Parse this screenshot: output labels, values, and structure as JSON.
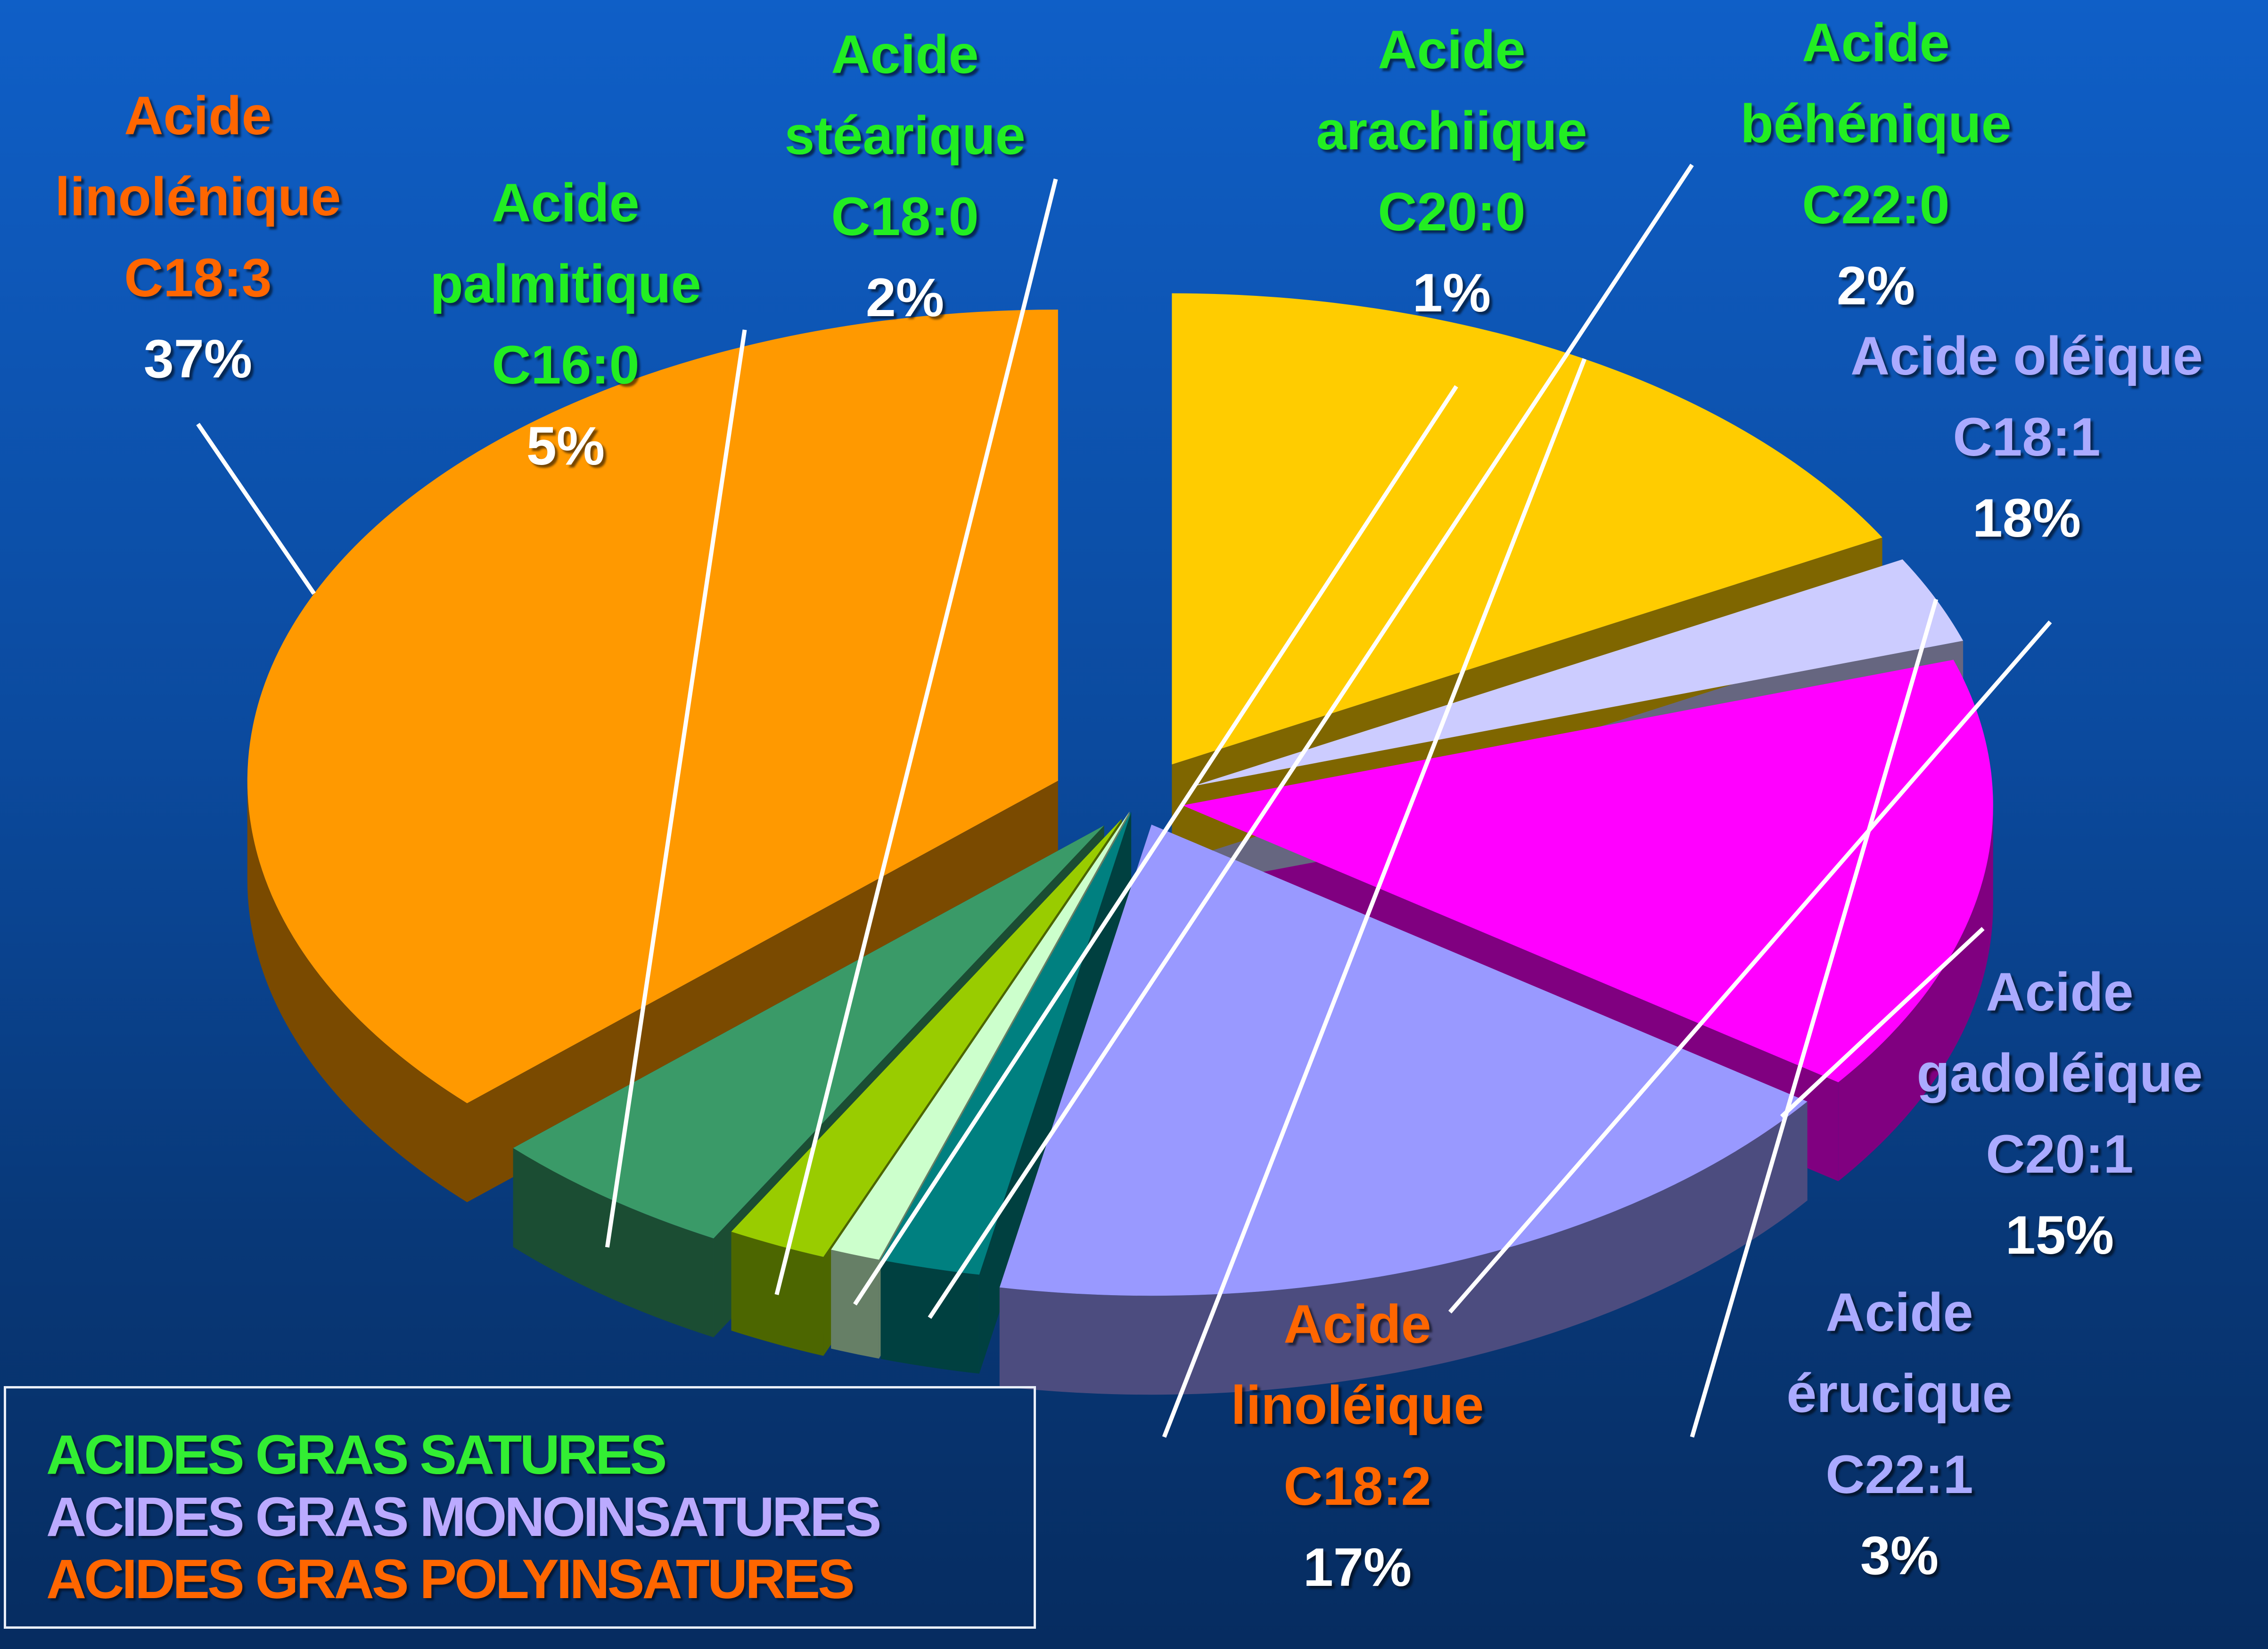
{
  "chart_data": {
    "type": "pie",
    "title": "",
    "slices": [
      {
        "name": "Acide linolénique",
        "code": "C18:3",
        "value": 37,
        "label": "37%",
        "group": "poly",
        "color": "#ff9900",
        "side": "#7a4a00"
      },
      {
        "name": "Acide palmitique",
        "code": "C16:0",
        "value": 5,
        "label": "5%",
        "group": "sat",
        "color": "#3a9a68",
        "side": "#1b4d33"
      },
      {
        "name": "Acide stéarique",
        "code": "C18:0",
        "value": 2,
        "label": "2%",
        "group": "sat",
        "color": "#99cc00",
        "side": "#4c6600"
      },
      {
        "name": "Acide arachiique",
        "code": "C20:0",
        "value": 1,
        "label": "1%",
        "group": "sat",
        "color": "#ccffcc",
        "side": "#667f66"
      },
      {
        "name": "Acide béhénique",
        "code": "C22:0",
        "value": 2,
        "label": "2%",
        "group": "sat",
        "color": "#008080",
        "side": "#004040"
      },
      {
        "name": "Acide oléique",
        "code": "C18:1",
        "value": 18,
        "label": "18%",
        "group": "mono",
        "color": "#9999ff",
        "side": "#4c4c7f"
      },
      {
        "name": "Acide gadoléique",
        "code": "C20:1",
        "value": 15,
        "label": "15%",
        "group": "mono",
        "color": "#ff00ff",
        "side": "#800080"
      },
      {
        "name": "Acide érucique",
        "code": "C22:1",
        "value": 3,
        "label": "3%",
        "group": "mono",
        "color": "#ccccff",
        "side": "#666680"
      },
      {
        "name": "Acide linoléique",
        "code": "C18:2",
        "value": 17,
        "label": "17%",
        "group": "poly",
        "color": "#ffcc00",
        "side": "#7f6600"
      }
    ],
    "legend": [
      {
        "text": "ACIDES GRAS SATURES",
        "group": "sat"
      },
      {
        "text": "ACIDES GRAS MONOINSATURES",
        "group": "mono"
      },
      {
        "text": "ACIDES GRAS POLYINSATURES",
        "group": "poly"
      }
    ],
    "group_colors": {
      "sat": "#33ee33",
      "mono": "#aaaaff",
      "poly": "#ff6600"
    },
    "legend_placement": "bottom-left",
    "style": "3d-exploded"
  },
  "labels": {
    "linolenique": {
      "l1": "Acide",
      "l2": "linolénique",
      "code": "C18:3",
      "pct": "37%"
    },
    "palmitique": {
      "l1": "Acide",
      "l2": "palmitique",
      "code": "C16:0",
      "pct": "5%"
    },
    "stearique": {
      "l1": "Acide",
      "l2": "stéarique",
      "code": "C18:0",
      "pct": "2%"
    },
    "arachiique": {
      "l1": "Acide",
      "l2": "arachiique",
      "code": "C20:0",
      "pct": "1%"
    },
    "behenique": {
      "l1": "Acide",
      "l2": "béhénique",
      "code": "C22:0",
      "pct": "2%"
    },
    "oleique": {
      "l1": "Acide oléique",
      "code": "C18:1",
      "pct": "18%"
    },
    "gadoleique": {
      "l1": "Acide",
      "l2": "gadoléique",
      "code": "C20:1",
      "pct": "15%"
    },
    "erucique": {
      "l1": "Acide",
      "l2": "érucique",
      "code": "C22:1",
      "pct": "3%"
    },
    "linoleique": {
      "l1": "Acide",
      "l2": "linoléique",
      "code": "C18:2",
      "pct": "17%"
    }
  },
  "legend_box": {
    "sat": "ACIDES GRAS SATURES",
    "mono": "ACIDES GRAS MONOINSATURES",
    "poly": "ACIDES GRAS POLYINSATURES"
  }
}
